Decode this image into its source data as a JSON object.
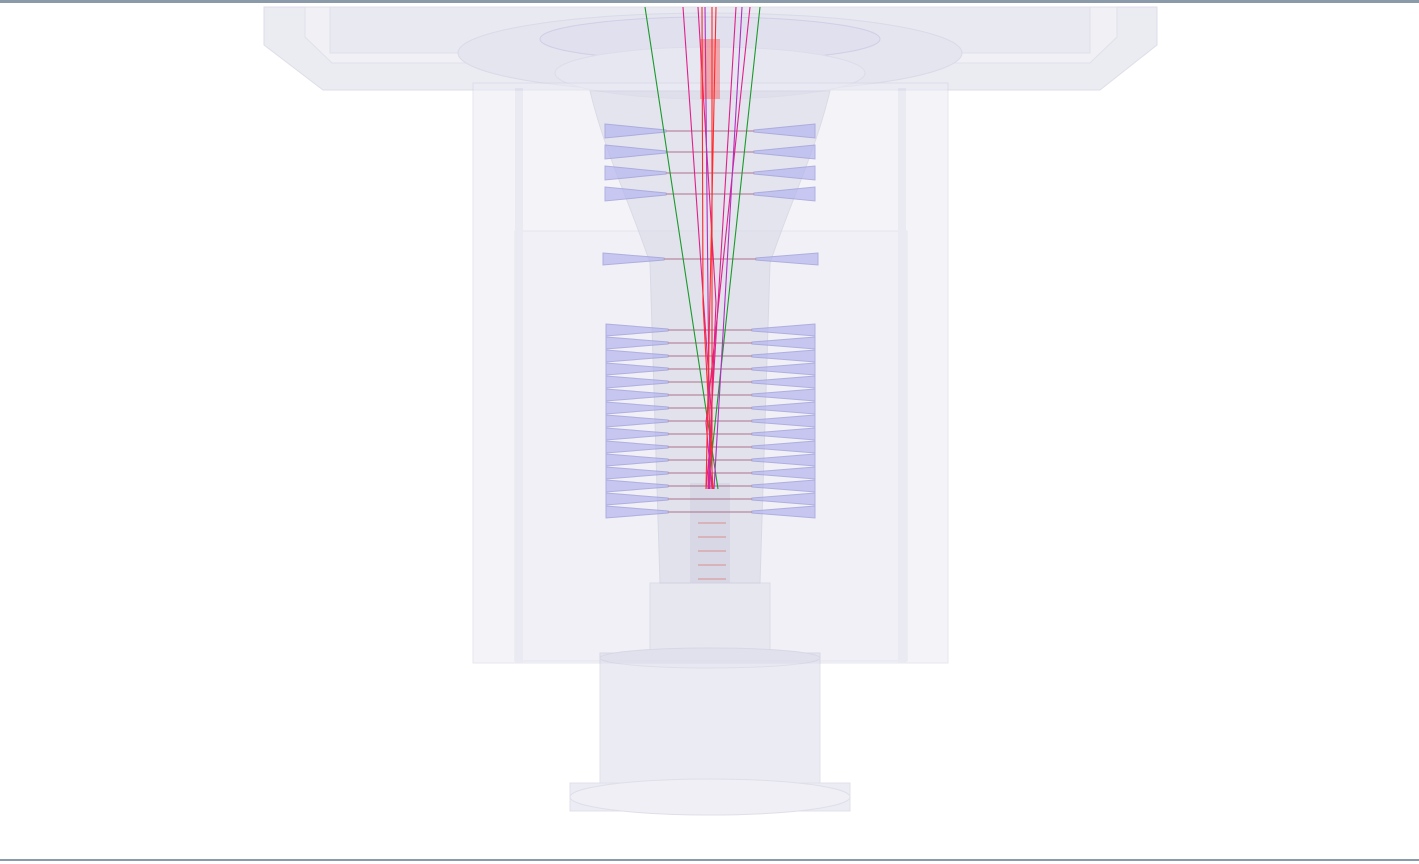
{
  "viewport": {
    "background": "#ffffff",
    "frame_color": "#8a9aa8"
  },
  "geometry_colors": {
    "housing_fill": "#dcdcea",
    "housing_stroke": "#c8c8dc",
    "electrode_fill": "#b8b8f0",
    "electrode_stroke": "#9a9ad8",
    "rod_color": "#b07890"
  },
  "trajectory_colors": {
    "magenta": "#e0208a",
    "red": "#ff2a2a",
    "purple": "#b030c0",
    "green": "#1a9a2a"
  },
  "electrode_stacks": [
    {
      "name": "upper-funnel-stack",
      "count": 4
    },
    {
      "name": "single-ring",
      "count": 1
    },
    {
      "name": "lower-funnel-stack",
      "count": 15
    }
  ]
}
